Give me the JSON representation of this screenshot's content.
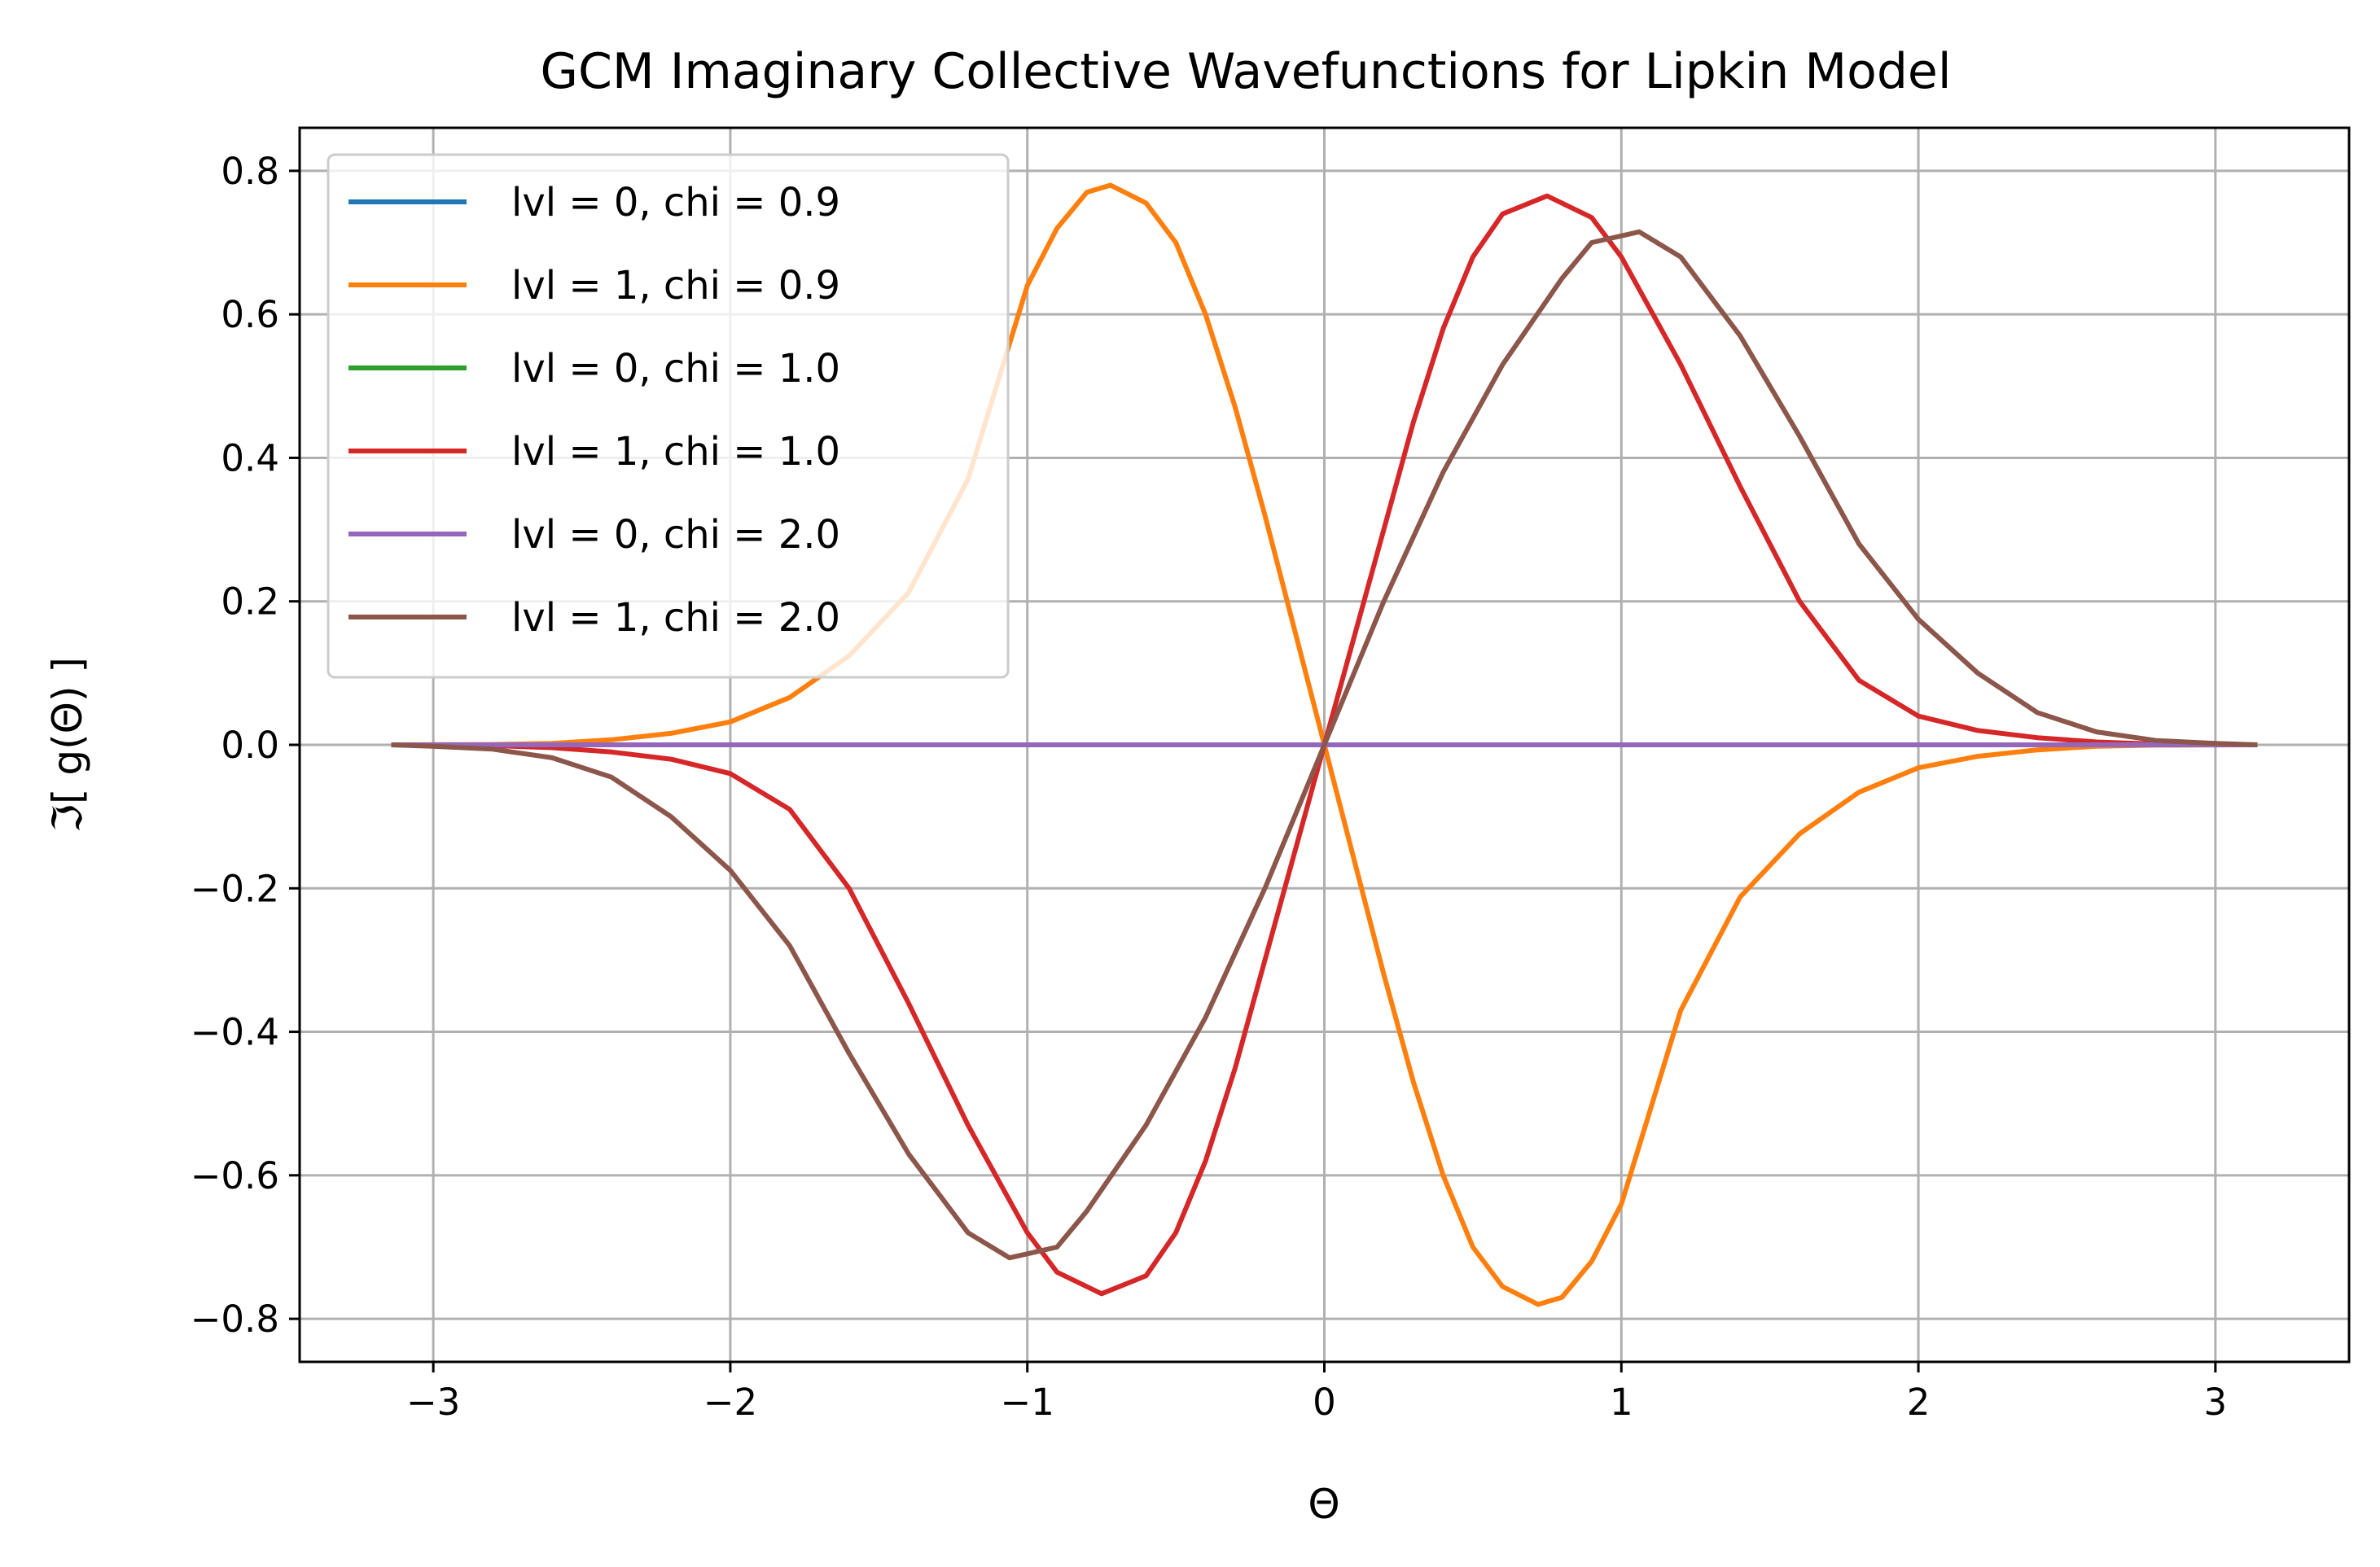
{
  "chart_data": {
    "type": "line",
    "title": "GCM Imaginary Collective Wavefunctions for Lipkin Model",
    "xlabel": "Θ",
    "ylabel": "ℑ[ g(Θ) ]",
    "xlim": [
      -3.45,
      3.45
    ],
    "ylim": [
      -0.86,
      0.86
    ],
    "x_range": [
      -3.14159,
      3.14159
    ],
    "xticks": [
      -3,
      -2,
      -1,
      0,
      1,
      2,
      3
    ],
    "xtick_labels": [
      "−3",
      "−2",
      "−1",
      "0",
      "1",
      "2",
      "3"
    ],
    "yticks": [
      -0.8,
      -0.6,
      -0.4,
      -0.2,
      0.0,
      0.2,
      0.4,
      0.6,
      0.8
    ],
    "ytick_labels": [
      "−0.8",
      "−0.6",
      "−0.4",
      "−0.2",
      "0.0",
      "0.2",
      "0.4",
      "0.6",
      "0.8"
    ],
    "grid": true,
    "legend_position": "upper-left",
    "series": [
      {
        "name": "lvl = 0, chi = 0.9",
        "color": "#1f77b4",
        "points": [
          [
            -3.14159,
            0
          ],
          [
            3.14159,
            0
          ]
        ]
      },
      {
        "name": "lvl = 1, chi = 0.9",
        "color": "#ff7f0e",
        "points": [
          [
            -3.14159,
            0.0
          ],
          [
            -2.8,
            0.0005
          ],
          [
            -2.6,
            0.002
          ],
          [
            -2.4,
            0.007
          ],
          [
            -2.2,
            0.016
          ],
          [
            -2.0,
            0.032
          ],
          [
            -1.8,
            0.066
          ],
          [
            -1.6,
            0.124
          ],
          [
            -1.4,
            0.212
          ],
          [
            -1.2,
            0.37
          ],
          [
            -1.0,
            0.64
          ],
          [
            -0.9,
            0.72
          ],
          [
            -0.8,
            0.77
          ],
          [
            -0.72,
            0.78
          ],
          [
            -0.6,
            0.755
          ],
          [
            -0.5,
            0.7
          ],
          [
            -0.4,
            0.6
          ],
          [
            -0.3,
            0.47
          ],
          [
            -0.2,
            0.32
          ],
          [
            -0.1,
            0.16
          ],
          [
            0.0,
            0.0
          ],
          [
            0.1,
            -0.16
          ],
          [
            0.2,
            -0.32
          ],
          [
            0.3,
            -0.47
          ],
          [
            0.4,
            -0.6
          ],
          [
            0.5,
            -0.7
          ],
          [
            0.6,
            -0.755
          ],
          [
            0.72,
            -0.78
          ],
          [
            0.8,
            -0.77
          ],
          [
            0.9,
            -0.72
          ],
          [
            1.0,
            -0.64
          ],
          [
            1.2,
            -0.37
          ],
          [
            1.4,
            -0.212
          ],
          [
            1.6,
            -0.124
          ],
          [
            1.8,
            -0.066
          ],
          [
            2.0,
            -0.032
          ],
          [
            2.2,
            -0.016
          ],
          [
            2.4,
            -0.007
          ],
          [
            2.6,
            -0.002
          ],
          [
            2.8,
            -0.0005
          ],
          [
            3.14159,
            0.0
          ]
        ]
      },
      {
        "name": "lvl = 0, chi = 1.0",
        "color": "#2ca02c",
        "points": [
          [
            -3.14159,
            0
          ],
          [
            3.14159,
            0
          ]
        ]
      },
      {
        "name": "lvl = 1, chi = 1.0",
        "color": "#d62728",
        "points": [
          [
            -3.14159,
            0.0
          ],
          [
            -2.8,
            -0.001
          ],
          [
            -2.6,
            -0.004
          ],
          [
            -2.4,
            -0.01
          ],
          [
            -2.2,
            -0.02
          ],
          [
            -2.0,
            -0.04
          ],
          [
            -1.8,
            -0.09
          ],
          [
            -1.6,
            -0.2
          ],
          [
            -1.4,
            -0.36
          ],
          [
            -1.2,
            -0.53
          ],
          [
            -1.0,
            -0.68
          ],
          [
            -0.9,
            -0.735
          ],
          [
            -0.75,
            -0.765
          ],
          [
            -0.6,
            -0.74
          ],
          [
            -0.5,
            -0.68
          ],
          [
            -0.4,
            -0.58
          ],
          [
            -0.3,
            -0.45
          ],
          [
            -0.2,
            -0.3
          ],
          [
            -0.1,
            -0.15
          ],
          [
            0.0,
            0.0
          ],
          [
            0.1,
            0.15
          ],
          [
            0.2,
            0.3
          ],
          [
            0.3,
            0.45
          ],
          [
            0.4,
            0.58
          ],
          [
            0.5,
            0.68
          ],
          [
            0.6,
            0.74
          ],
          [
            0.75,
            0.765
          ],
          [
            0.9,
            0.735
          ],
          [
            1.0,
            0.68
          ],
          [
            1.2,
            0.53
          ],
          [
            1.4,
            0.36
          ],
          [
            1.6,
            0.2
          ],
          [
            1.8,
            0.09
          ],
          [
            2.0,
            0.04
          ],
          [
            2.2,
            0.02
          ],
          [
            2.4,
            0.01
          ],
          [
            2.6,
            0.004
          ],
          [
            2.8,
            0.001
          ],
          [
            3.14159,
            0.0
          ]
        ]
      },
      {
        "name": "lvl = 0, chi = 2.0",
        "color": "#9467bd",
        "points": [
          [
            -3.14159,
            0
          ],
          [
            3.14159,
            0
          ]
        ]
      },
      {
        "name": "lvl = 1, chi = 2.0",
        "color": "#8c564b",
        "points": [
          [
            -3.14159,
            0.0
          ],
          [
            -3.0,
            -0.002
          ],
          [
            -2.8,
            -0.006
          ],
          [
            -2.6,
            -0.018
          ],
          [
            -2.4,
            -0.045
          ],
          [
            -2.2,
            -0.1
          ],
          [
            -2.0,
            -0.175
          ],
          [
            -1.8,
            -0.28
          ],
          [
            -1.6,
            -0.43
          ],
          [
            -1.4,
            -0.57
          ],
          [
            -1.2,
            -0.68
          ],
          [
            -1.06,
            -0.715
          ],
          [
            -0.9,
            -0.7
          ],
          [
            -0.8,
            -0.65
          ],
          [
            -0.6,
            -0.53
          ],
          [
            -0.4,
            -0.38
          ],
          [
            -0.2,
            -0.2
          ],
          [
            0.0,
            0.0
          ],
          [
            0.2,
            0.2
          ],
          [
            0.4,
            0.38
          ],
          [
            0.6,
            0.53
          ],
          [
            0.8,
            0.65
          ],
          [
            0.9,
            0.7
          ],
          [
            1.06,
            0.715
          ],
          [
            1.2,
            0.68
          ],
          [
            1.4,
            0.57
          ],
          [
            1.6,
            0.43
          ],
          [
            1.8,
            0.28
          ],
          [
            2.0,
            0.175
          ],
          [
            2.2,
            0.1
          ],
          [
            2.4,
            0.045
          ],
          [
            2.6,
            0.018
          ],
          [
            2.8,
            0.006
          ],
          [
            3.0,
            0.002
          ],
          [
            3.14159,
            0.0
          ]
        ]
      }
    ]
  }
}
